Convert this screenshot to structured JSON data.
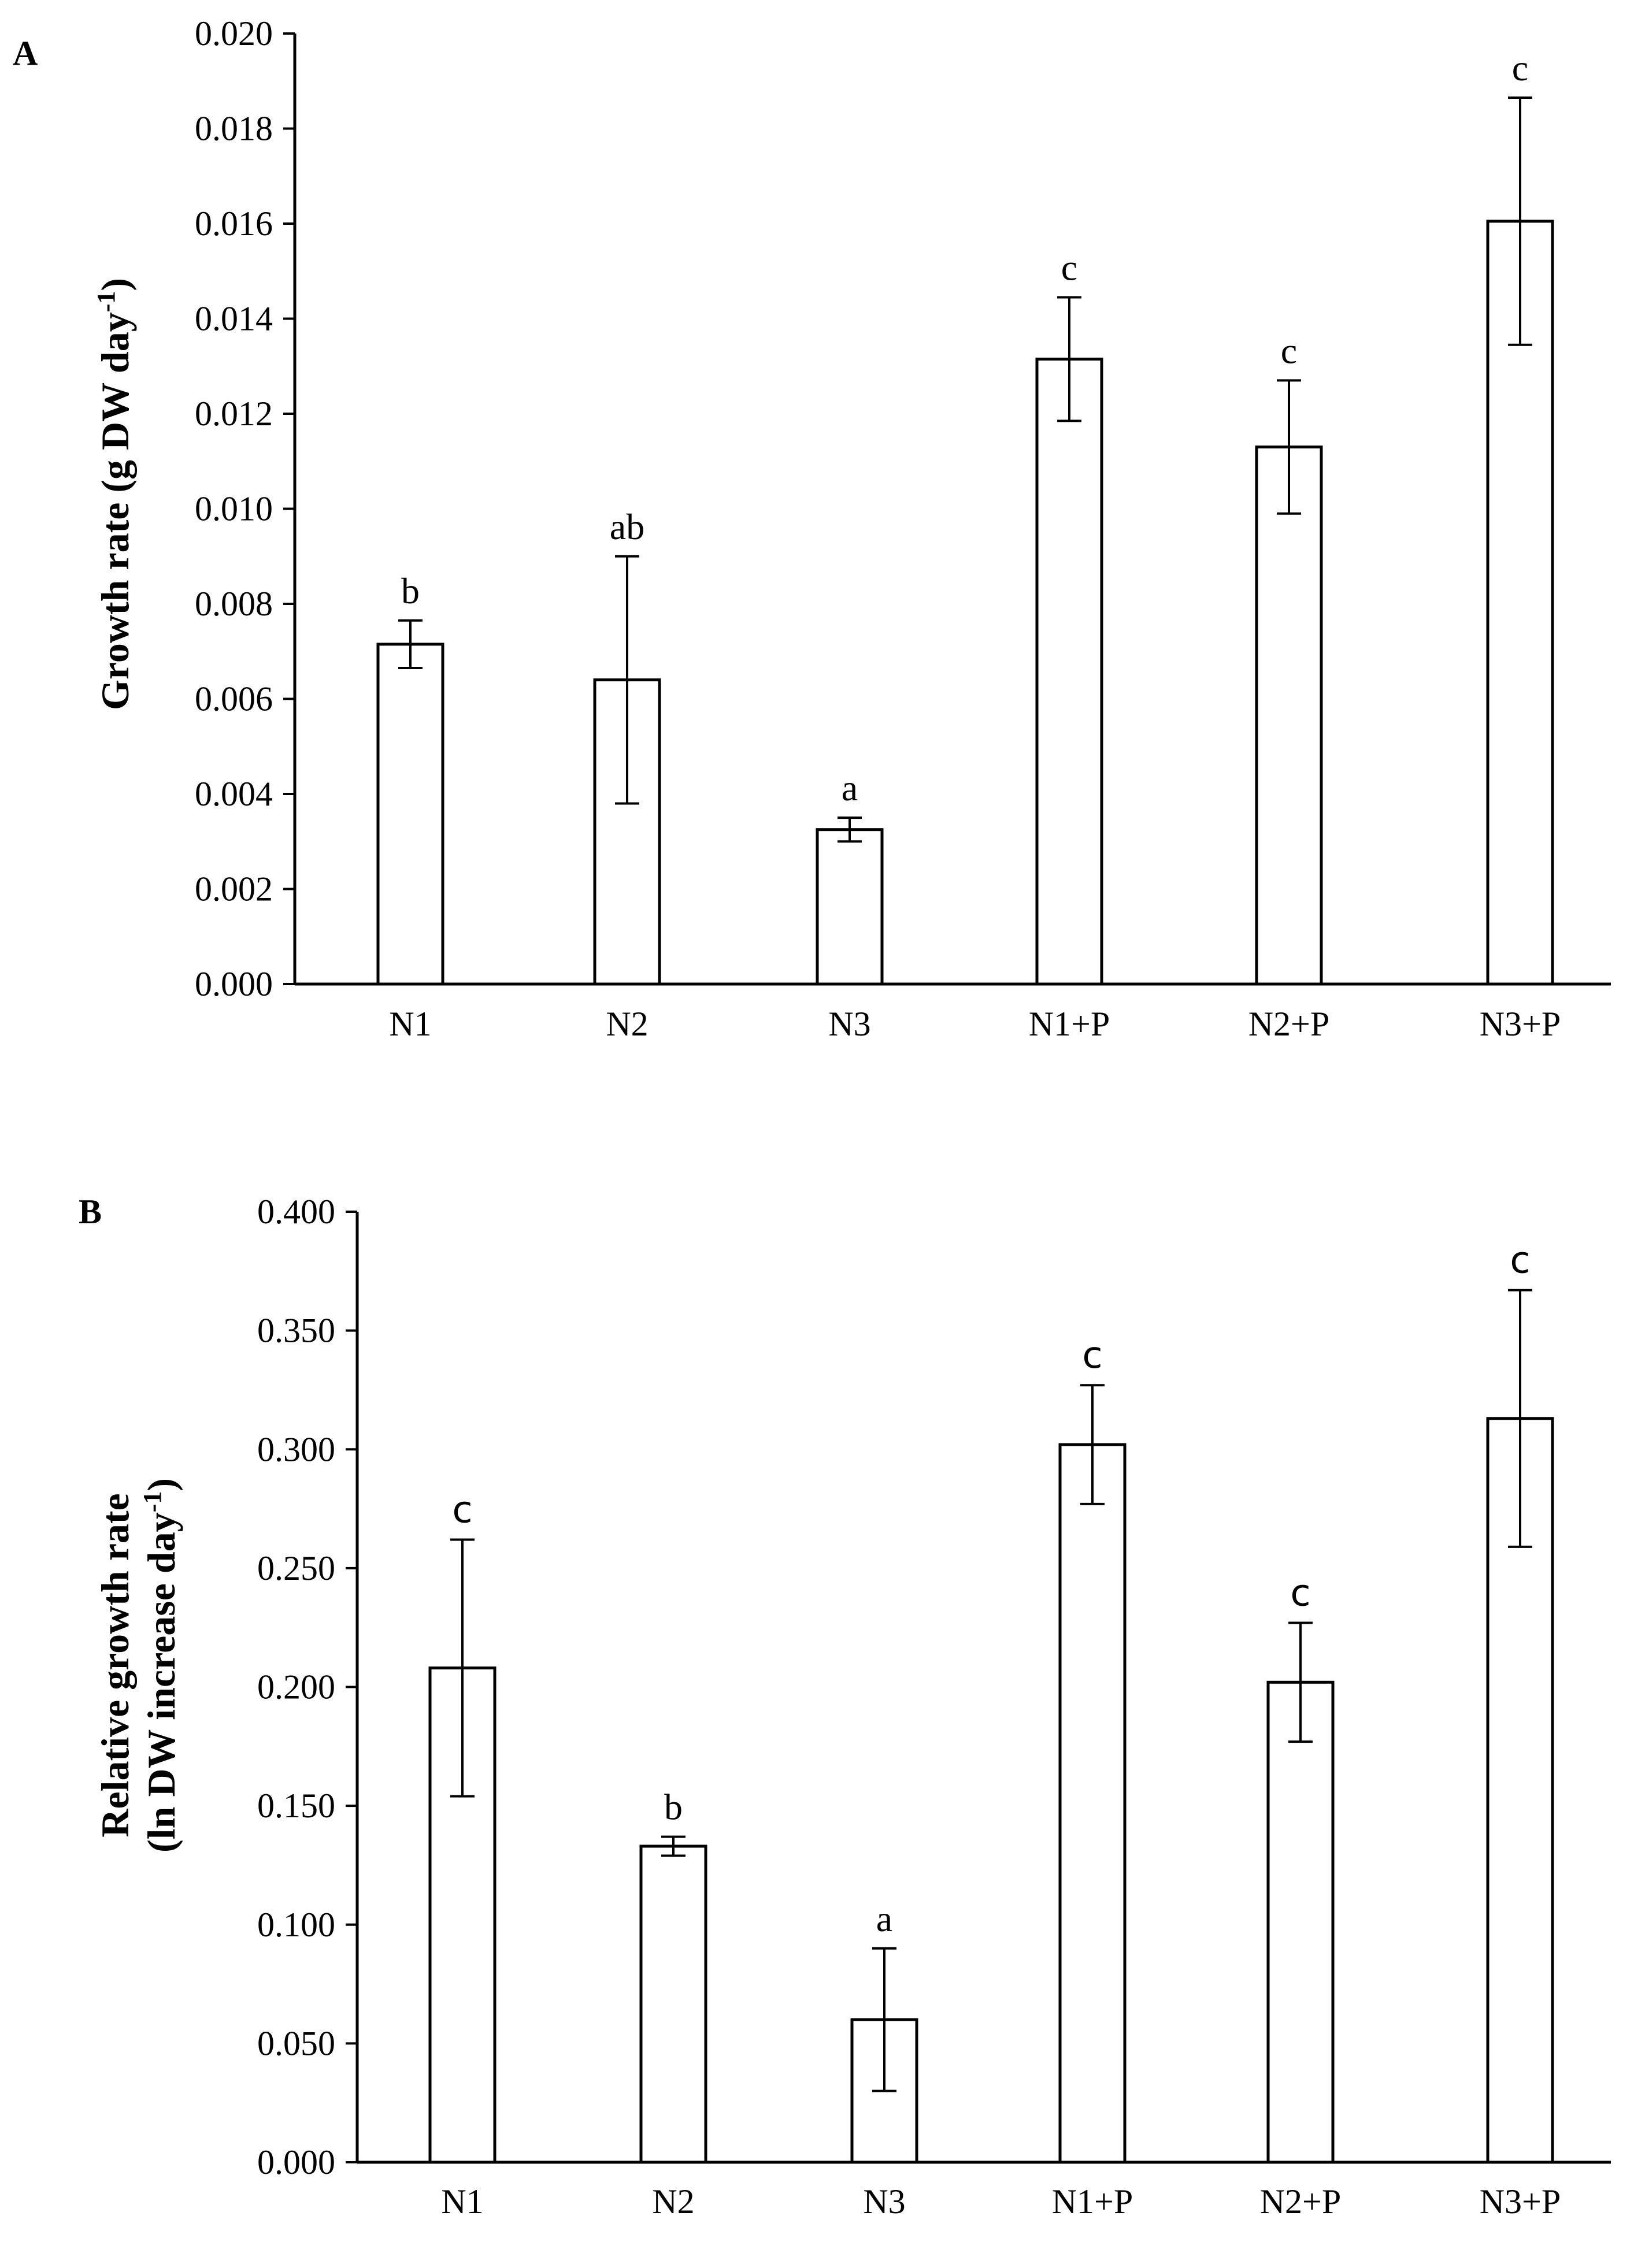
{
  "chart_data": [
    {
      "panel": "A",
      "type": "bar",
      "title": "",
      "xlabel": "",
      "ylabel": "Growth rate (g DW day",
      "ylabel_superscript": "-1",
      "ylabel_close": ")",
      "ylim": [
        0,
        0.02
      ],
      "yticks": [
        "0.000",
        "0.002",
        "0.004",
        "0.006",
        "0.008",
        "0.010",
        "0.012",
        "0.014",
        "0.016",
        "0.018",
        "0.020"
      ],
      "categories": [
        "N1",
        "N2",
        "N3",
        "N1+P",
        "N2+P",
        "N3+P"
      ],
      "values": [
        0.00715,
        0.0064,
        0.00325,
        0.01315,
        0.0113,
        0.01605
      ],
      "errors": [
        0.0005,
        0.0026,
        0.00025,
        0.0013,
        0.0014,
        0.0026
      ],
      "significance": [
        "b",
        "ab",
        "a",
        "c",
        "c",
        "c"
      ],
      "significance_style": [
        "serif",
        "serif",
        "serif",
        "serif",
        "serif",
        "serif"
      ],
      "grid": false,
      "legend": "none",
      "colors": {
        "bar_fill": "#ffffff",
        "bar_stroke": "#000000"
      }
    },
    {
      "panel": "B",
      "type": "bar",
      "title": "",
      "xlabel": "",
      "ylabel_line1": "Relative growth rate",
      "ylabel_line2": "(ln DW increase day",
      "ylabel_superscript": "-1",
      "ylabel_close": ")",
      "ylim": [
        0,
        0.4
      ],
      "yticks": [
        "0.000",
        "0.050",
        "0.100",
        "0.150",
        "0.200",
        "0.250",
        "0.300",
        "0.350",
        "0.400"
      ],
      "categories": [
        "N1",
        "N2",
        "N3",
        "N1+P",
        "N2+P",
        "N3+P"
      ],
      "values": [
        0.208,
        0.133,
        0.06,
        0.302,
        0.202,
        0.313
      ],
      "errors": [
        0.054,
        0.004,
        0.03,
        0.025,
        0.025,
        0.054
      ],
      "significance": [
        "c",
        "b",
        "a",
        "c",
        "c",
        "c"
      ],
      "significance_style": [
        "sans",
        "serif",
        "serif",
        "sans",
        "sans",
        "sans"
      ],
      "grid": false,
      "legend": "none",
      "colors": {
        "bar_fill": "#ffffff",
        "bar_stroke": "#000000"
      }
    }
  ]
}
